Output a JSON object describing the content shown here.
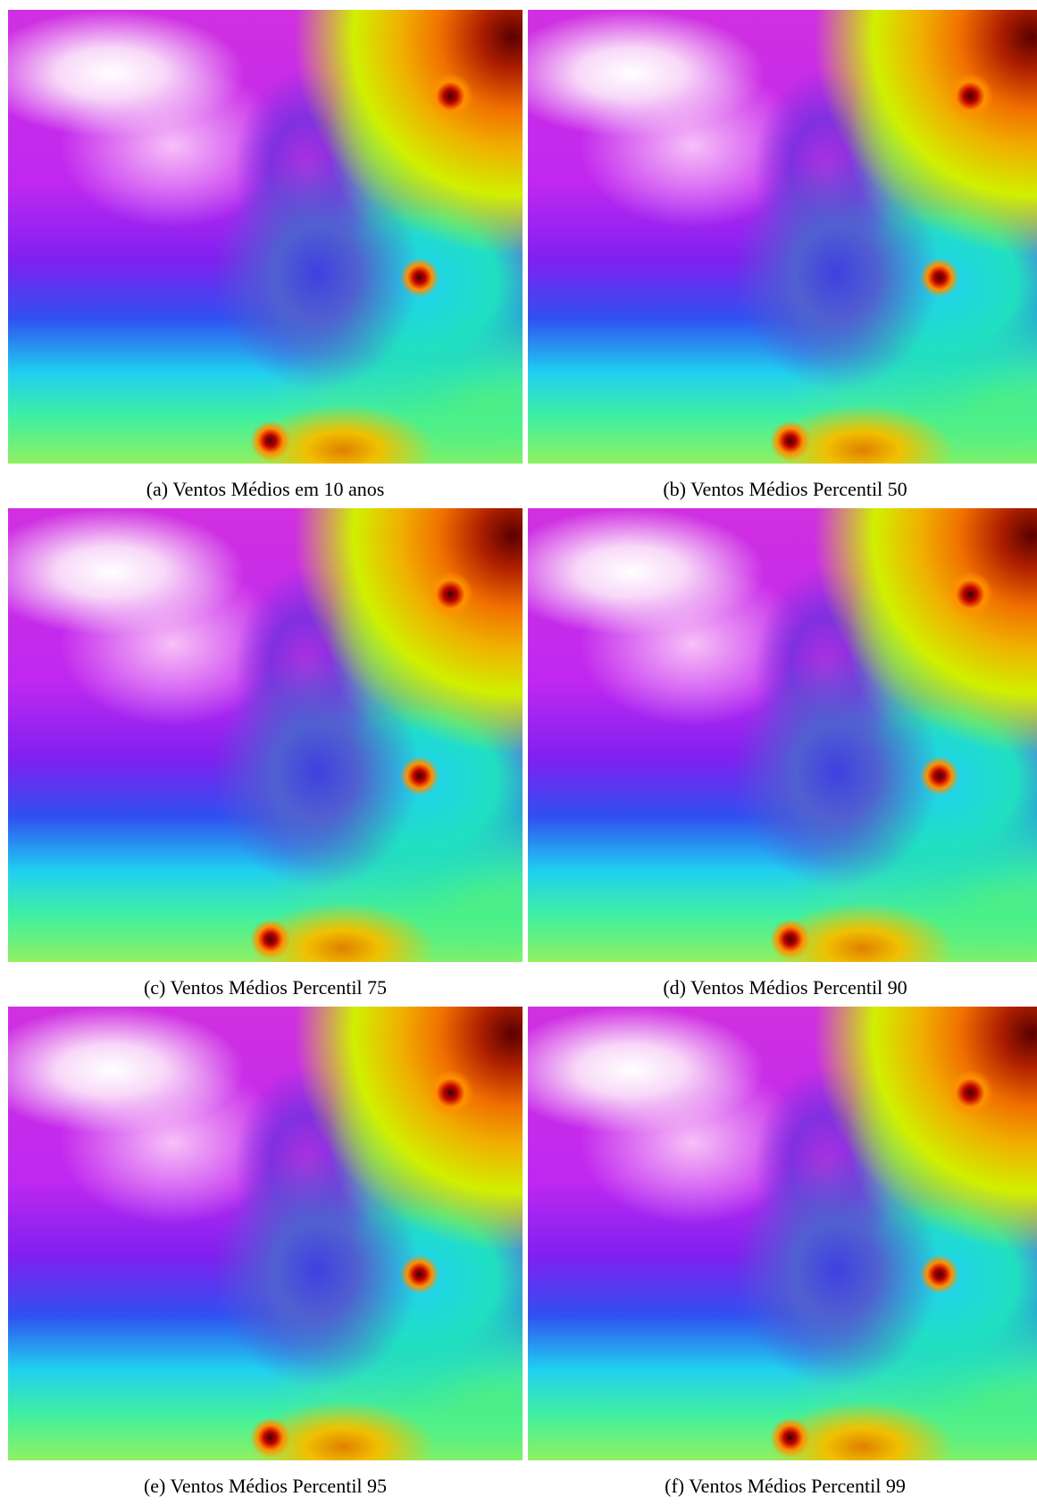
{
  "figure": {
    "panels": [
      {
        "caption": "(a) Ventos Médios em 10 anos"
      },
      {
        "caption": "(b) Ventos Médios Percentil 50"
      },
      {
        "caption": "(c) Ventos Médios Percentil 75"
      },
      {
        "caption": "(d) Ventos Médios Percentil 90"
      },
      {
        "caption": "(e) Ventos Médios Percentil 95"
      },
      {
        "caption": "(f) Ventos Médios Percentil 99"
      }
    ]
  }
}
